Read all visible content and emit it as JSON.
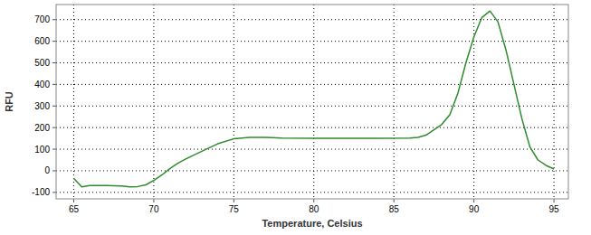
{
  "chart_data": {
    "type": "line",
    "xlabel": "Temperature, Celsius",
    "ylabel": "RFU",
    "x": [
      65,
      65.5,
      66,
      67,
      68,
      68.5,
      69,
      69.5,
      70,
      70.5,
      71,
      71.5,
      72,
      73,
      74,
      75,
      76,
      77,
      78,
      80,
      82,
      84,
      86,
      86.5,
      87,
      87.5,
      88,
      88.5,
      89,
      89.5,
      90,
      90.5,
      91,
      91.5,
      92,
      92.5,
      93,
      93.5,
      94,
      94.5,
      95
    ],
    "series": [
      {
        "color": "#2e8b2e",
        "values": [
          -35,
          -75,
          -68,
          -68,
          -70,
          -75,
          -73,
          -65,
          -45,
          -20,
          10,
          35,
          55,
          90,
          125,
          148,
          155,
          155,
          152,
          150,
          150,
          150,
          152,
          155,
          165,
          190,
          215,
          260,
          360,
          500,
          620,
          710,
          740,
          690,
          560,
          400,
          240,
          110,
          50,
          25,
          8
        ]
      }
    ],
    "xlim": [
      63.9,
      95.9
    ],
    "ylim": [
      -130,
      770
    ],
    "xticks": [
      65,
      70,
      75,
      80,
      85,
      90,
      95
    ],
    "yticks": [
      -100,
      0,
      100,
      200,
      300,
      400,
      500,
      600,
      700
    ],
    "grid": true
  }
}
